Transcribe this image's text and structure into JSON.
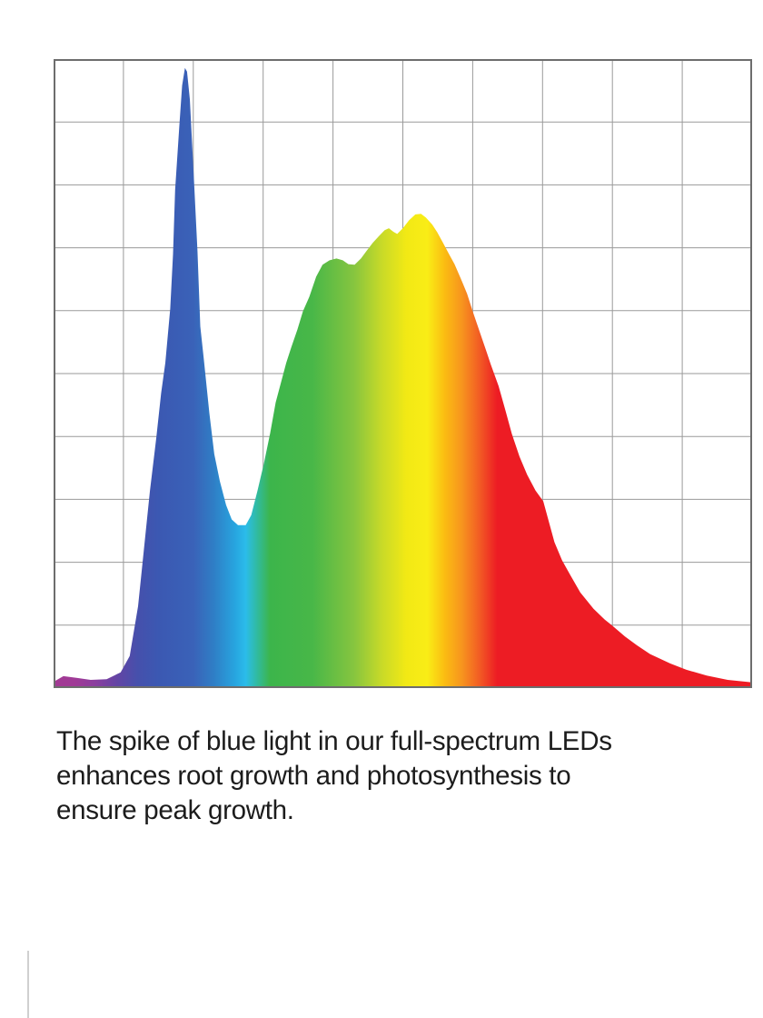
{
  "page": {
    "background_color": "#ffffff"
  },
  "caption": {
    "text": "The spike of blue light in our full-spectrum LEDs enhances root growth and photosynthesis to ensure peak growth.",
    "lines": [
      "The spike of blue light in our full-spectrum LEDs",
      "enhances root growth and photosynthesis to",
      "ensure peak growth."
    ],
    "color": "#1c1c1c"
  },
  "decoration": {
    "bottom_left_rule_color": "#d0d0d0"
  },
  "chart_data": {
    "type": "area",
    "title": "",
    "subtitle": "",
    "xlabel": "",
    "ylabel": "",
    "legend": "none",
    "grid": {
      "visible": true,
      "columns": 10,
      "rows": 10,
      "line_color": "#9a9a9a",
      "border_color": "#6d6d6d",
      "background": "#ffffff"
    },
    "x_axis": {
      "tick_labels": [],
      "range_percent": [
        0,
        100
      ]
    },
    "y_axis": {
      "tick_labels": [],
      "range_percent": [
        0,
        100
      ]
    },
    "series": [
      {
        "name": "full-spectrum-led-spectral-power",
        "description": "Relative spectral power distribution; sharp blue spike near 19% of x-range (peak 98.6%), valley at 26-28% (26%), broad green-to-red hump peaking near 52% of x-range (75%), long red tail to the right edge.",
        "points_percent": [
          [
            0,
            1.0
          ],
          [
            1.4,
            1.9
          ],
          [
            3.4,
            1.6
          ],
          [
            5.3,
            1.3
          ],
          [
            7.6,
            1.4
          ],
          [
            9.6,
            2.5
          ],
          [
            10.9,
            5.1
          ],
          [
            12.1,
            13.0
          ],
          [
            12.9,
            21.7
          ],
          [
            13.8,
            31.4
          ],
          [
            14.7,
            39.7
          ],
          [
            15.4,
            46.9
          ],
          [
            16.0,
            51.7
          ],
          [
            16.7,
            60.3
          ],
          [
            17.1,
            69.0
          ],
          [
            17.4,
            79.2
          ],
          [
            18.0,
            89.3
          ],
          [
            18.4,
            95.8
          ],
          [
            18.8,
            98.6
          ],
          [
            19.1,
            98.0
          ],
          [
            19.5,
            93.6
          ],
          [
            20.1,
            80.6
          ],
          [
            20.6,
            69.5
          ],
          [
            21.0,
            57.5
          ],
          [
            21.5,
            52.4
          ],
          [
            22.3,
            43.7
          ],
          [
            23.0,
            37.2
          ],
          [
            23.8,
            32.9
          ],
          [
            24.7,
            29.1
          ],
          [
            25.5,
            26.8
          ],
          [
            26.4,
            25.9
          ],
          [
            27.5,
            25.9
          ],
          [
            28.3,
            27.5
          ],
          [
            29.2,
            31.4
          ],
          [
            30.1,
            35.7
          ],
          [
            31.0,
            40.5
          ],
          [
            31.8,
            45.4
          ],
          [
            32.7,
            49.2
          ],
          [
            33.3,
            51.7
          ],
          [
            34.0,
            54.1
          ],
          [
            34.9,
            57.0
          ],
          [
            35.7,
            59.9
          ],
          [
            36.6,
            62.2
          ],
          [
            37.6,
            65.4
          ],
          [
            38.5,
            67.3
          ],
          [
            39.5,
            68.0
          ],
          [
            40.5,
            68.3
          ],
          [
            41.4,
            68.0
          ],
          [
            42.2,
            67.4
          ],
          [
            43.1,
            67.3
          ],
          [
            44.0,
            68.3
          ],
          [
            44.8,
            69.5
          ],
          [
            45.7,
            70.8
          ],
          [
            46.6,
            71.9
          ],
          [
            47.4,
            72.8
          ],
          [
            48.0,
            73.1
          ],
          [
            48.7,
            72.5
          ],
          [
            49.2,
            72.2
          ],
          [
            50.0,
            73.1
          ],
          [
            50.9,
            74.4
          ],
          [
            51.8,
            75.3
          ],
          [
            52.6,
            75.4
          ],
          [
            53.3,
            74.8
          ],
          [
            54.2,
            73.7
          ],
          [
            54.9,
            72.5
          ],
          [
            55.7,
            70.9
          ],
          [
            56.6,
            69.0
          ],
          [
            57.4,
            67.4
          ],
          [
            58.3,
            65.1
          ],
          [
            59.2,
            62.7
          ],
          [
            60.0,
            59.9
          ],
          [
            61.1,
            56.3
          ],
          [
            62.0,
            53.4
          ],
          [
            62.6,
            51.4
          ],
          [
            63.7,
            48.0
          ],
          [
            64.7,
            44.1
          ],
          [
            65.6,
            40.4
          ],
          [
            66.7,
            36.8
          ],
          [
            67.8,
            33.9
          ],
          [
            69.0,
            31.4
          ],
          [
            70.1,
            29.7
          ],
          [
            71.7,
            23.2
          ],
          [
            72.8,
            20.3
          ],
          [
            74.0,
            17.9
          ],
          [
            75.4,
            15.2
          ],
          [
            77.3,
            12.6
          ],
          [
            78.9,
            10.9
          ],
          [
            79.9,
            10.0
          ],
          [
            81.8,
            8.2
          ],
          [
            83.5,
            6.8
          ],
          [
            85.4,
            5.4
          ],
          [
            88.3,
            3.9
          ],
          [
            90.6,
            2.9
          ],
          [
            93.5,
            2.0
          ],
          [
            96.5,
            1.3
          ],
          [
            100,
            0.9
          ]
        ]
      }
    ],
    "fill_gradient": {
      "direction": "horizontal",
      "stops": [
        {
          "offset": 0,
          "color": "#A23A94"
        },
        {
          "offset": 3,
          "color": "#A03A96"
        },
        {
          "offset": 6,
          "color": "#8A3E9E"
        },
        {
          "offset": 9,
          "color": "#6444A4"
        },
        {
          "offset": 12,
          "color": "#4650AC"
        },
        {
          "offset": 15,
          "color": "#3B58B2"
        },
        {
          "offset": 20,
          "color": "#3A62B8"
        },
        {
          "offset": 23,
          "color": "#2F7FC6"
        },
        {
          "offset": 26,
          "color": "#27A5E0"
        },
        {
          "offset": 27.5,
          "color": "#2BBCEA"
        },
        {
          "offset": 29,
          "color": "#30BBA6"
        },
        {
          "offset": 31,
          "color": "#3CB54B"
        },
        {
          "offset": 37,
          "color": "#48B748"
        },
        {
          "offset": 43,
          "color": "#86C53F"
        },
        {
          "offset": 47,
          "color": "#C8DA28"
        },
        {
          "offset": 50.5,
          "color": "#F2E915"
        },
        {
          "offset": 53.5,
          "color": "#F9ED16"
        },
        {
          "offset": 56,
          "color": "#FBBC12"
        },
        {
          "offset": 58.5,
          "color": "#F7941E"
        },
        {
          "offset": 61,
          "color": "#F25B24"
        },
        {
          "offset": 63.5,
          "color": "#ED1C24"
        },
        {
          "offset": 100,
          "color": "#ED1C24"
        }
      ]
    }
  }
}
